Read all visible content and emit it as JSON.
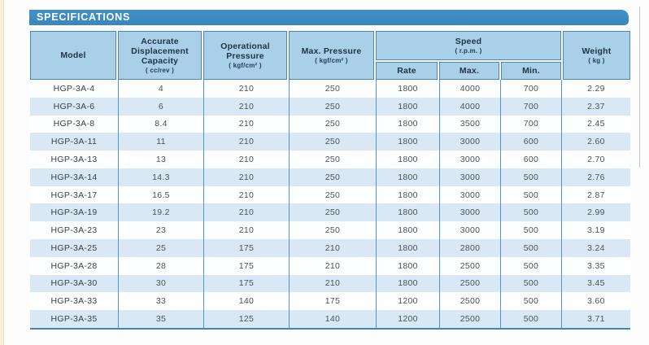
{
  "banner": {
    "title": "SPECIFICATIONS"
  },
  "colors": {
    "banner_blue": "#3a87be",
    "header_fill": "#a9cfe9",
    "row_alt_fill": "#d9e8f4",
    "divider_blue": "#4f97c9"
  },
  "table": {
    "columns": [
      {
        "label": "Model",
        "sub": ""
      },
      {
        "label": "Accurate Displacement Capacity",
        "sub": "( cc/rev )"
      },
      {
        "label": "Operational Pressure",
        "sub": "( kgf/cm² )"
      },
      {
        "label": "Max. Pressure",
        "sub": "( kgf/cm² )"
      },
      {
        "label": "Speed",
        "sub": "( r.p.m. )",
        "children": [
          "Rate",
          "Max.",
          "Min."
        ]
      },
      {
        "label": "Weight",
        "sub": "( kg )"
      }
    ],
    "rows": [
      [
        "HGP-3A-4",
        "4",
        "210",
        "250",
        "1800",
        "4000",
        "700",
        "2.29"
      ],
      [
        "HGP-3A-6",
        "6",
        "210",
        "250",
        "1800",
        "4000",
        "700",
        "2.37"
      ],
      [
        "HGP-3A-8",
        "8.4",
        "210",
        "250",
        "1800",
        "3500",
        "700",
        "2.45"
      ],
      [
        "HGP-3A-11",
        "11",
        "210",
        "250",
        "1800",
        "3000",
        "600",
        "2.60"
      ],
      [
        "HGP-3A-13",
        "13",
        "210",
        "250",
        "1800",
        "3000",
        "600",
        "2.70"
      ],
      [
        "HGP-3A-14",
        "14.3",
        "210",
        "250",
        "1800",
        "3000",
        "500",
        "2.76"
      ],
      [
        "HGP-3A-17",
        "16.5",
        "210",
        "250",
        "1800",
        "3000",
        "500",
        "2.87"
      ],
      [
        "HGP-3A-19",
        "19.2",
        "210",
        "250",
        "1800",
        "3000",
        "500",
        "2.99"
      ],
      [
        "HGP-3A-23",
        "23",
        "210",
        "250",
        "1800",
        "3000",
        "500",
        "3.19"
      ],
      [
        "HGP-3A-25",
        "25",
        "175",
        "210",
        "1800",
        "2800",
        "500",
        "3.24"
      ],
      [
        "HGP-3A-28",
        "28",
        "175",
        "210",
        "1800",
        "2500",
        "500",
        "3.35"
      ],
      [
        "HGP-3A-30",
        "30",
        "175",
        "210",
        "1800",
        "2500",
        "500",
        "3.45"
      ],
      [
        "HGP-3A-33",
        "33",
        "140",
        "175",
        "1200",
        "2500",
        "500",
        "3.60"
      ],
      [
        "HGP-3A-35",
        "35",
        "125",
        "140",
        "1200",
        "2500",
        "500",
        "3.71"
      ]
    ]
  }
}
